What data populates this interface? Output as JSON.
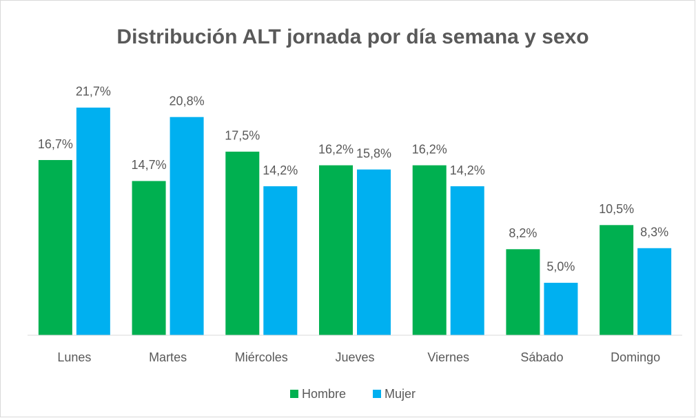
{
  "chart_data": {
    "type": "bar",
    "title": "Distribución ALT jornada por día semana y sexo",
    "categories": [
      "Lunes",
      "Martes",
      "Miércoles",
      "Jueves",
      "Viernes",
      "Sábado",
      "Domingo"
    ],
    "series": [
      {
        "name": "Hombre",
        "color": "#00b050",
        "values": [
          16.7,
          14.7,
          17.5,
          16.2,
          16.2,
          8.2,
          10.5
        ],
        "value_labels": [
          "16,7%",
          "14,7%",
          "17,5%",
          "16,2%",
          "16,2%",
          "8,2%",
          "10,5%"
        ]
      },
      {
        "name": "Mujer",
        "color": "#00b0f0",
        "values": [
          21.7,
          20.8,
          14.2,
          15.8,
          14.2,
          5.0,
          8.3
        ],
        "value_labels": [
          "21,7%",
          "20,8%",
          "14,2%",
          "15,8%",
          "14,2%",
          "5,0%",
          "8,3%"
        ]
      }
    ],
    "ylim": [
      0,
      24
    ],
    "legend": "bottom"
  }
}
